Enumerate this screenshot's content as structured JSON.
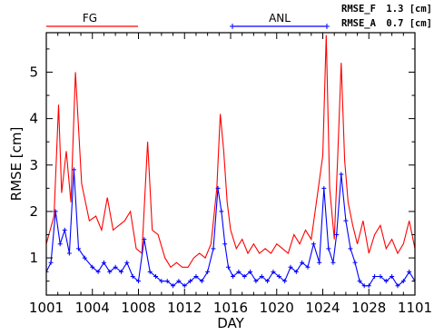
{
  "chart_data": {
    "type": "line",
    "xlabel": "DAY",
    "ylabel": "RMSE [cm]",
    "xlim": [
      1001,
      1101
    ],
    "ylim": [
      0.2,
      5.85
    ],
    "x_ticks": [
      1001,
      1004,
      1008,
      1012,
      1016,
      1020,
      1024,
      1028,
      1101
    ],
    "x_tick_labels": [
      "1001",
      "1004",
      "1008",
      "1012",
      "1016",
      "1020",
      "1024",
      "1028",
      "1101"
    ],
    "y_ticks": [
      1,
      2,
      3,
      4,
      5
    ],
    "y_tick_labels": [
      "1",
      "2",
      "3",
      "4",
      "5"
    ],
    "x_axis_note": "days 1001-1031 then 1101 (calendar day codes, evenly spaced)",
    "legend": [
      {
        "label": "FG",
        "color": "#ff0000",
        "marker": "none"
      },
      {
        "label": "ANL",
        "color": "#0000ff",
        "marker": "plus"
      }
    ],
    "stats": [
      {
        "label": "RMSE_F",
        "value": "1.3 [cm]"
      },
      {
        "label": "RMSE_A",
        "value": "0.7 [cm]"
      }
    ],
    "series": [
      {
        "name": "FG",
        "color": "#ff0000",
        "x": [
          1001.0,
          1001.5,
          1001.8,
          1002.0,
          1002.3,
          1002.6,
          1002.9,
          1003.3,
          1003.8,
          1004.3,
          1004.8,
          1005.3,
          1005.8,
          1006.3,
          1006.8,
          1007.3,
          1007.8,
          1008.3,
          1008.8,
          1009.2,
          1009.7,
          1010.3,
          1010.8,
          1011.3,
          1011.8,
          1012.3,
          1012.8,
          1013.3,
          1013.8,
          1014.3,
          1014.8,
          1015.1,
          1015.4,
          1015.7,
          1016.0,
          1016.5,
          1017.0,
          1017.5,
          1018.0,
          1018.5,
          1019.0,
          1019.5,
          1020.0,
          1020.5,
          1021.0,
          1021.5,
          1022.0,
          1022.5,
          1023.0,
          1023.5,
          1024.0,
          1024.3,
          1024.6,
          1025.0,
          1025.3,
          1025.6,
          1025.9,
          1026.2,
          1026.6,
          1027.0,
          1027.5,
          1028.0,
          1028.5,
          1029.0,
          1029.5,
          1030.0,
          1030.5,
          1031.0,
          1031.5,
          1101.0
        ],
        "y": [
          1.3,
          1.9,
          4.3,
          2.4,
          3.3,
          2.2,
          5.0,
          2.6,
          1.8,
          1.9,
          1.6,
          2.3,
          1.6,
          1.7,
          1.8,
          2.0,
          1.2,
          1.1,
          3.5,
          1.6,
          1.5,
          1.0,
          0.8,
          0.9,
          0.8,
          0.8,
          1.0,
          1.1,
          1.0,
          1.3,
          2.5,
          4.1,
          3.3,
          2.2,
          1.6,
          1.2,
          1.4,
          1.1,
          1.3,
          1.1,
          1.2,
          1.1,
          1.3,
          1.2,
          1.1,
          1.5,
          1.3,
          1.6,
          1.4,
          2.3,
          3.2,
          5.8,
          2.5,
          1.4,
          3.2,
          5.2,
          3.1,
          2.2,
          1.7,
          1.3,
          1.8,
          1.1,
          1.5,
          1.7,
          1.2,
          1.4,
          1.1,
          1.3,
          1.8,
          1.2
        ]
      },
      {
        "name": "ANL",
        "color": "#0000ff",
        "x": [
          1001.0,
          1001.3,
          1001.6,
          1001.9,
          1002.2,
          1002.5,
          1002.8,
          1003.1,
          1003.5,
          1004.0,
          1004.5,
          1005.0,
          1005.5,
          1006.0,
          1006.5,
          1007.0,
          1007.5,
          1008.0,
          1008.5,
          1009.0,
          1009.5,
          1010.0,
          1010.5,
          1011.0,
          1011.5,
          1012.0,
          1012.5,
          1013.0,
          1013.5,
          1014.0,
          1014.5,
          1014.9,
          1015.2,
          1015.5,
          1015.8,
          1016.2,
          1016.7,
          1017.2,
          1017.7,
          1018.2,
          1018.7,
          1019.2,
          1019.7,
          1020.2,
          1020.7,
          1021.2,
          1021.7,
          1022.2,
          1022.7,
          1023.2,
          1023.7,
          1024.1,
          1024.5,
          1024.9,
          1025.2,
          1025.6,
          1026.0,
          1026.4,
          1026.8,
          1027.2,
          1027.6,
          1028.0,
          1028.5,
          1029.0,
          1029.5,
          1030.0,
          1030.5,
          1031.0,
          1031.5,
          1101.0
        ],
        "y": [
          0.7,
          0.9,
          2.0,
          1.3,
          1.6,
          1.1,
          2.9,
          1.2,
          1.0,
          0.8,
          0.7,
          0.9,
          0.7,
          0.8,
          0.7,
          0.9,
          0.6,
          0.5,
          1.4,
          0.7,
          0.6,
          0.5,
          0.5,
          0.4,
          0.5,
          0.4,
          0.5,
          0.6,
          0.5,
          0.7,
          1.2,
          2.5,
          2.0,
          1.3,
          0.8,
          0.6,
          0.7,
          0.6,
          0.7,
          0.5,
          0.6,
          0.5,
          0.7,
          0.6,
          0.5,
          0.8,
          0.7,
          0.9,
          0.8,
          1.3,
          0.9,
          2.5,
          1.2,
          0.9,
          1.5,
          2.8,
          1.8,
          1.2,
          0.9,
          0.5,
          0.4,
          0.4,
          0.6,
          0.6,
          0.5,
          0.6,
          0.4,
          0.5,
          0.7,
          0.5
        ]
      }
    ],
    "grid": false,
    "legend_placement": "top, above plot area"
  }
}
